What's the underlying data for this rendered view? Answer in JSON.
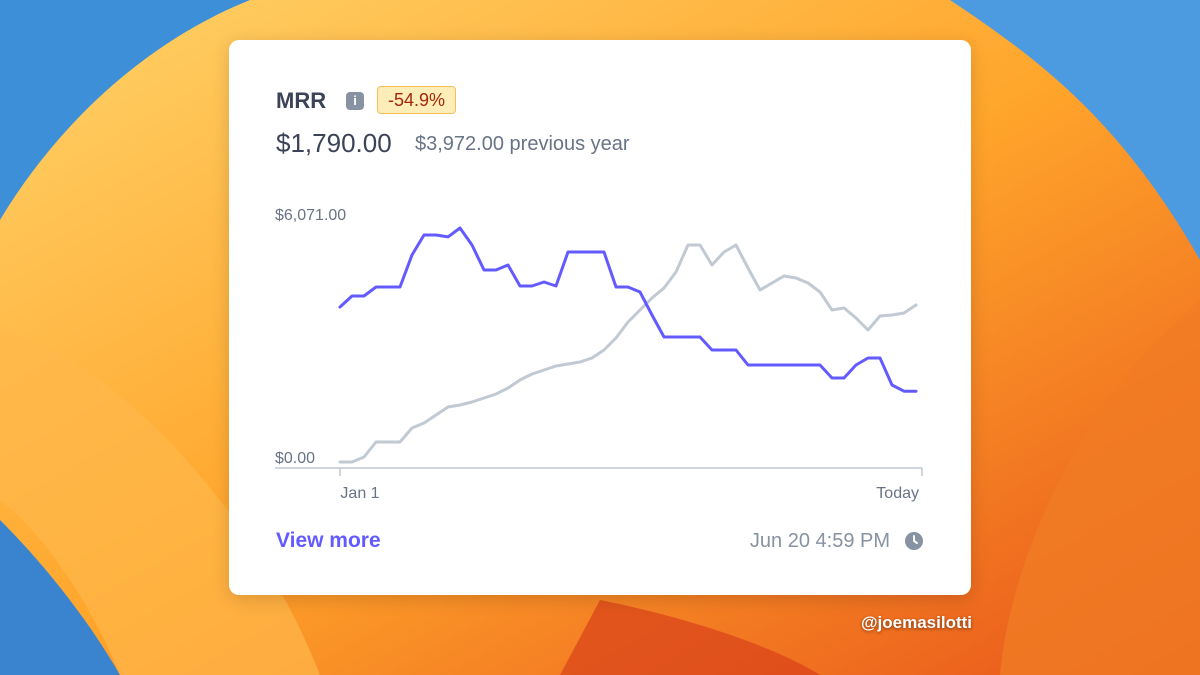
{
  "card": {
    "title": "MRR",
    "badge": "-54.9%",
    "value": "$1,790.00",
    "comparison": "$3,972.00 previous year",
    "link": "View more",
    "timestamp": "Jun 20 4:59 PM"
  },
  "watermark": "@joemasilotti",
  "chart_data": {
    "type": "line",
    "categories": [
      "Jan 1",
      null,
      null,
      null,
      null,
      null,
      null,
      null,
      null,
      null,
      null,
      null,
      null,
      null,
      null,
      null,
      null,
      null,
      null,
      null,
      null,
      null,
      null,
      null,
      null,
      null,
      null,
      null,
      null,
      null,
      null,
      null,
      null,
      null,
      null,
      null,
      null,
      null,
      null,
      null,
      null,
      null,
      null,
      null,
      null,
      null,
      null,
      null,
      "Today"
    ],
    "series": [
      {
        "color": "#c1c9d2",
        "values": [
          0,
          0,
          127,
          506,
          506,
          506,
          860,
          987,
          1189,
          1392,
          1442,
          1518,
          1619,
          1720,
          1872,
          2075,
          2226,
          2328,
          2429,
          2479,
          2530,
          2631,
          2834,
          3137,
          3542,
          3846,
          4149,
          4402,
          4807,
          5490,
          5490,
          4984,
          5313,
          5490,
          4908,
          4352,
          4529,
          4706,
          4655,
          4529,
          4301,
          3846,
          3896,
          3643,
          3340,
          3694,
          3719,
          3770,
          3972
        ]
      },
      {
        "color": "#635bff",
        "values": [
          3922,
          4200,
          4200,
          4428,
          4428,
          4428,
          5237,
          5743,
          5743,
          5693,
          5920,
          5490,
          4858,
          4858,
          4984,
          4453,
          4453,
          4554,
          4453,
          5313,
          5313,
          5313,
          5313,
          4428,
          4428,
          4301,
          3719,
          3163,
          3163,
          3163,
          3163,
          2834,
          2834,
          2834,
          2454,
          2454,
          2454,
          2454,
          2454,
          2454,
          2454,
          2125,
          2125,
          2454,
          2631,
          2631,
          1948,
          1790,
          1790
        ]
      }
    ],
    "ylim": [
      0,
      6071
    ],
    "yticks": [
      {
        "value": 0,
        "label": "$0.00"
      },
      {
        "value": 6071,
        "label": "$6,071.00"
      }
    ]
  }
}
